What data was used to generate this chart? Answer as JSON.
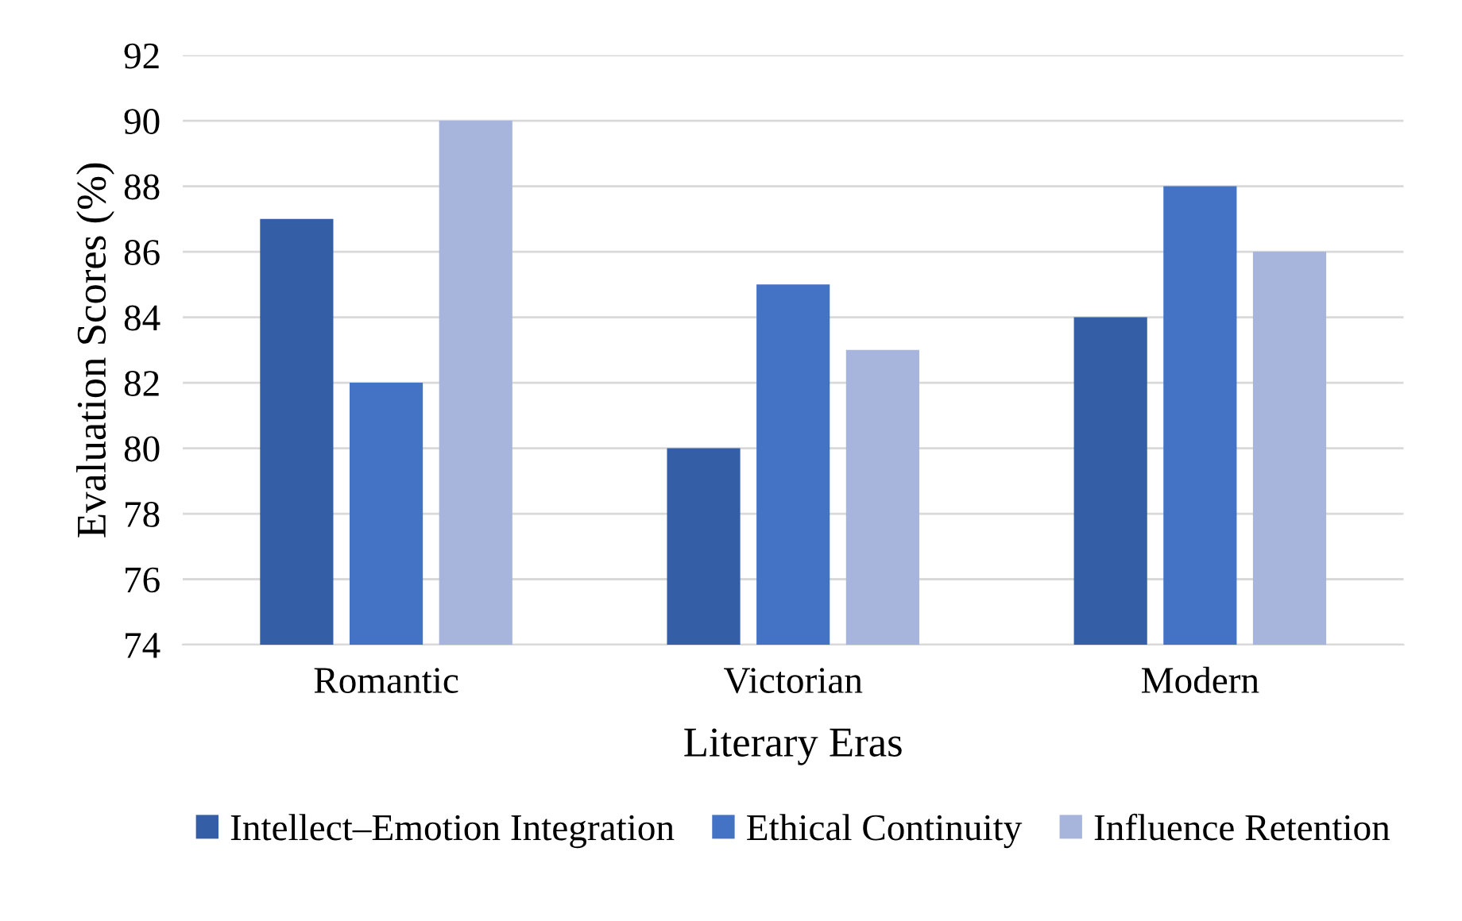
{
  "chart_data": {
    "type": "bar",
    "xlabel": "Literary Eras",
    "ylabel": "Evaluation Scores (%)",
    "categories": [
      "Romantic",
      "Victorian",
      "Modern"
    ],
    "series": [
      {
        "name": "Intellect–Emotion Integration",
        "color": "#345ea6",
        "values": [
          87,
          80,
          84
        ]
      },
      {
        "name": "Ethical Continuity",
        "color": "#4472c4",
        "values": [
          82,
          85,
          88
        ]
      },
      {
        "name": "Influence Retention",
        "color": "#a7b5dc",
        "values": [
          90,
          83,
          86
        ]
      }
    ],
    "ylim": [
      74,
      92
    ],
    "yticks": [
      74,
      76,
      78,
      80,
      82,
      84,
      86,
      88,
      90,
      92
    ],
    "grid": "y",
    "legend": "bottom"
  }
}
